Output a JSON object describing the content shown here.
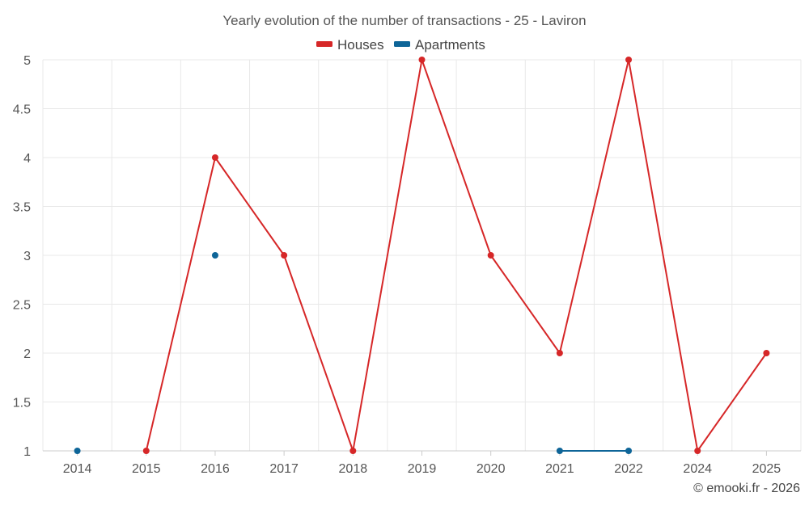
{
  "chart_data": {
    "type": "line",
    "title": "Yearly evolution of the number of transactions - 25 - Laviron",
    "categories": [
      "2014",
      "2015",
      "2016",
      "2017",
      "2018",
      "2019",
      "2020",
      "2021",
      "2022",
      "2024",
      "2025"
    ],
    "ylim": [
      1,
      5
    ],
    "yticks": [
      "1",
      "1.5",
      "2",
      "2.5",
      "3",
      "3.5",
      "4",
      "4.5",
      "5"
    ],
    "series": [
      {
        "name": "Houses",
        "color": "#d62728",
        "values": [
          null,
          1,
          4,
          3,
          1,
          5,
          3,
          2,
          5,
          1,
          2
        ]
      },
      {
        "name": "Apartments",
        "color": "#0e6598",
        "values": [
          1,
          null,
          3,
          null,
          null,
          null,
          null,
          1,
          1,
          null,
          null
        ]
      }
    ],
    "legend_position": "top-center",
    "grid": true,
    "xlabel": "",
    "ylabel": ""
  },
  "credit": "© emooki.fr - 2026"
}
